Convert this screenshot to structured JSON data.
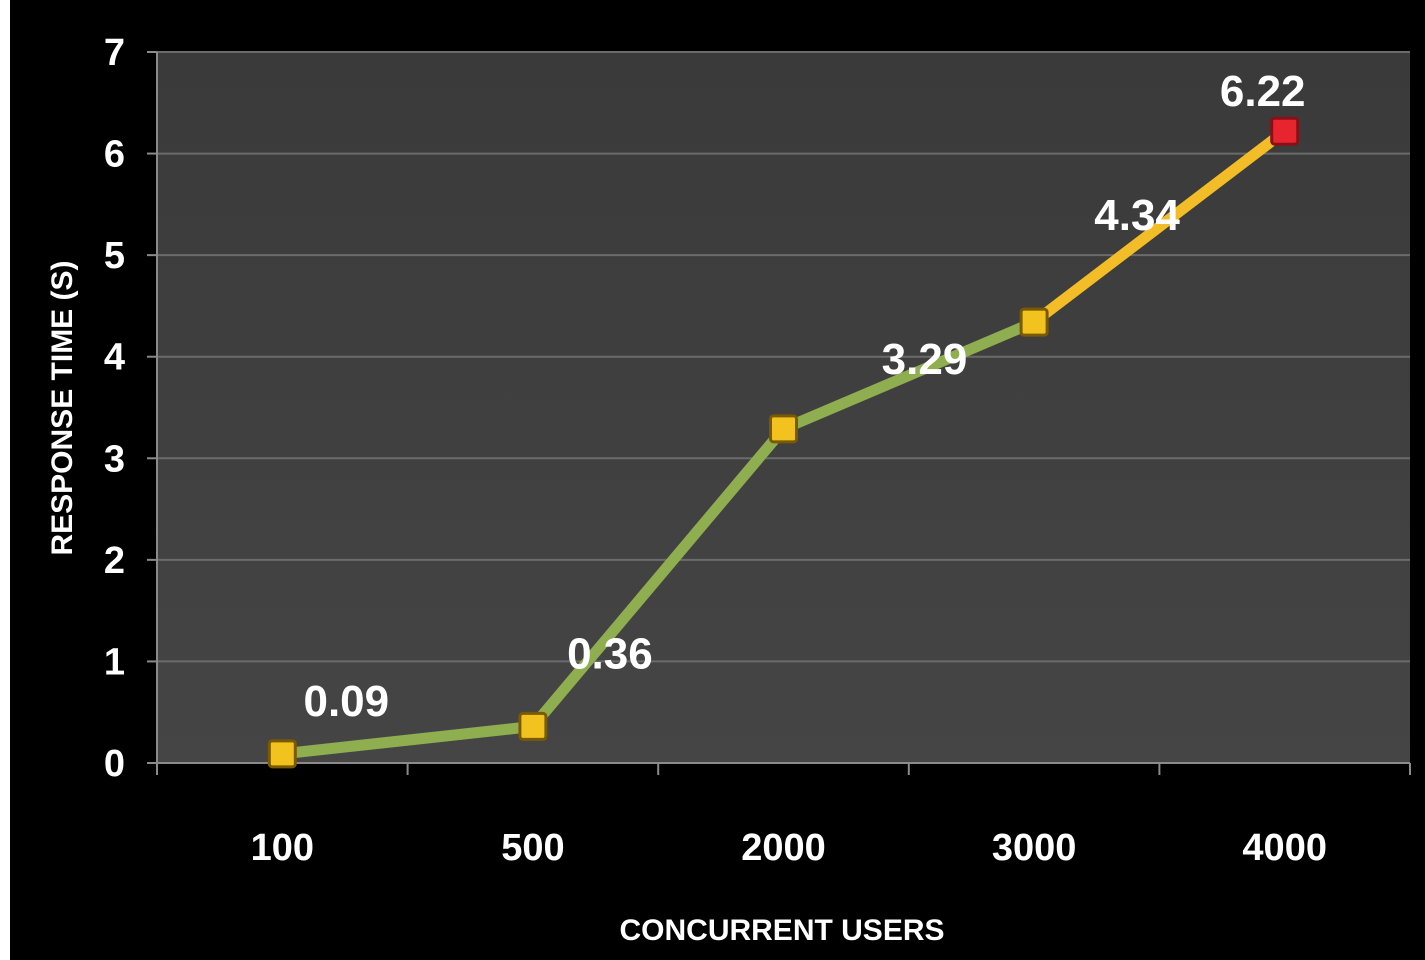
{
  "chart_data": {
    "type": "line",
    "title": "",
    "xlabel": "CONCURRENT USERS",
    "ylabel": "RESPONSE TIME (S)",
    "categories": [
      "100",
      "500",
      "2000",
      "3000",
      "4000"
    ],
    "series": [
      {
        "values": [
          0.09,
          0.36,
          3.29,
          4.34,
          6.22
        ]
      }
    ],
    "data_labels": [
      "0.09",
      "0.36",
      "3.29",
      "4.34",
      "6.22"
    ],
    "ylim": [
      0,
      7
    ],
    "yticks": [
      "0",
      "1",
      "2",
      "3",
      "4",
      "5",
      "6",
      "7"
    ],
    "grid": true,
    "colors": {
      "background": "#000000",
      "plot_area": "#404040",
      "grid": "#6b6b6b",
      "line_main": "#8fae4f",
      "line_last_segment": "#f2bd26",
      "marker": "#f2c21f",
      "marker_last": "#e8242f",
      "text": "#ffffff"
    }
  }
}
